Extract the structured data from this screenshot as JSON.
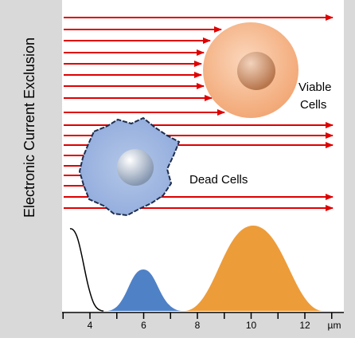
{
  "y_axis_label": "Electronic Current Exclusion",
  "labels": {
    "viable": [
      "Viable",
      "Cells"
    ],
    "dead": "Dead Cells"
  },
  "x_axis": {
    "ticks": [
      4,
      6,
      8,
      10,
      12
    ],
    "unit": "µm"
  }
}
